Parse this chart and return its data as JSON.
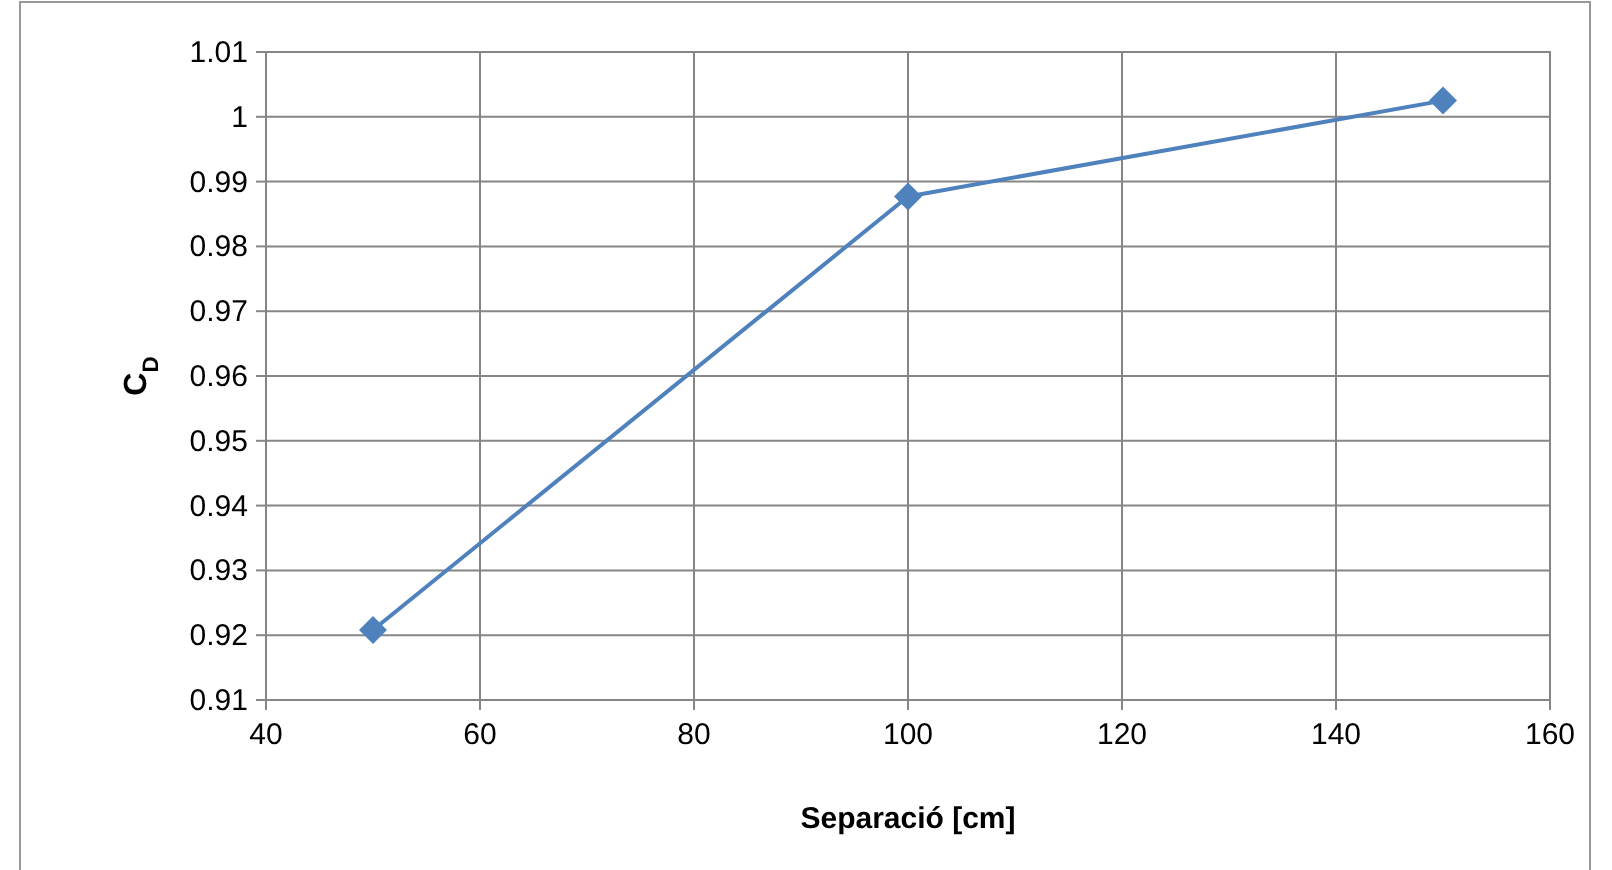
{
  "chart_data": {
    "type": "line",
    "xlabel": "Separació [cm]",
    "ylabel": "C$_{D}$",
    "x": [
      50,
      100,
      150
    ],
    "series": [
      {
        "color": "#4f81bd",
        "values": [
          0.9208,
          0.9877,
          1.0025
        ]
      }
    ],
    "xlim": [
      40,
      160
    ],
    "xticks": [
      40,
      60,
      80,
      100,
      120,
      140,
      160
    ],
    "ylim": [
      0.91,
      1.01
    ],
    "yticks": [
      0.91,
      0.92,
      0.93,
      0.94,
      0.95,
      0.96,
      0.97,
      0.98,
      0.99,
      1,
      1.01
    ],
    "grid": true,
    "marker": "diamond",
    "line_style": "solid"
  }
}
